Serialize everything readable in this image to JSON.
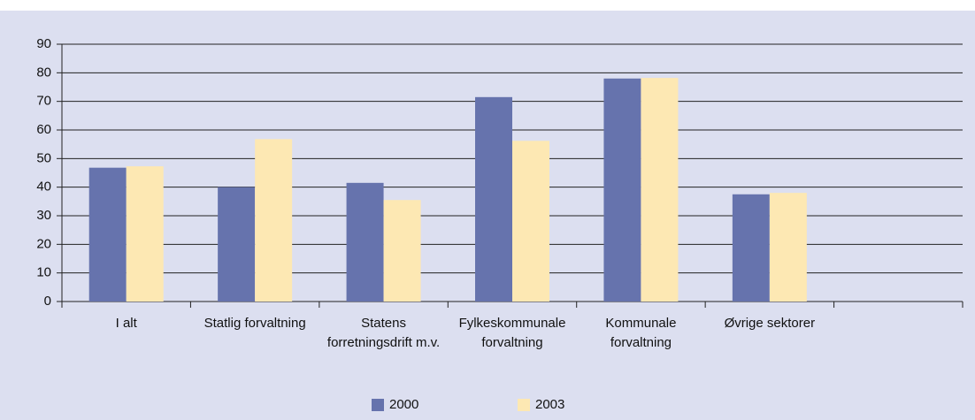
{
  "chart_data": {
    "type": "bar",
    "categories": [
      "I alt",
      "Statlig forvaltning",
      "Statens forretningsdrift m.v.",
      "Fylkeskommunale forvaltning",
      "Kommunale forvaltning",
      "Øvrige sektorer",
      null
    ],
    "series": [
      {
        "name": "2000",
        "color": "#6673ad",
        "values": [
          46.8,
          40,
          41.5,
          71.5,
          78,
          37.5,
          null
        ]
      },
      {
        "name": "2003",
        "color": "#fde8b3",
        "values": [
          47.3,
          56.8,
          35.5,
          56.2,
          78.2,
          38,
          null
        ]
      }
    ],
    "ylim": [
      0,
      90
    ],
    "yticks": [
      0,
      10,
      20,
      30,
      40,
      50,
      60,
      70,
      80,
      90
    ],
    "grid": true,
    "legend": "bottom"
  }
}
